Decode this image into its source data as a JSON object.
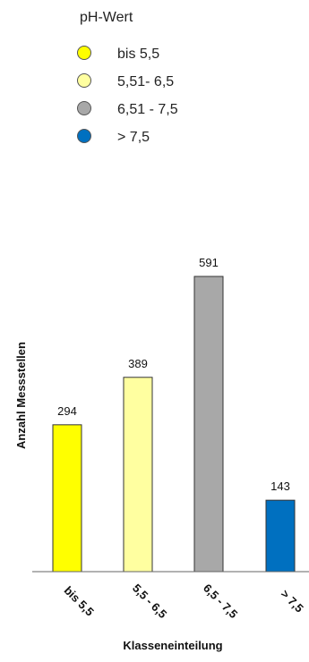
{
  "chart_data": {
    "type": "bar",
    "title": "",
    "xlabel": "Klasseneinteilung",
    "ylabel": "Anzahl Messstellen",
    "categories": [
      "bis 5,5",
      "5,5 - 6,5",
      "6,5 - 7,5",
      "> 7,5"
    ],
    "values": [
      294,
      389,
      591,
      143
    ],
    "colors": [
      "#FFFF00",
      "#FFFFA0",
      "#A8A8A8",
      "#0070C0"
    ],
    "ylim": [
      0,
      591
    ],
    "grid": false,
    "legend": {
      "title": "pH-Wert",
      "placement": "top-left",
      "entries": [
        {
          "label": "bis 5,5",
          "color": "#FFFF00"
        },
        {
          "label": "5,51- 6,5",
          "color": "#FFFFA0"
        },
        {
          "label": "6,51 - 7,5",
          "color": "#A8A8A8"
        },
        {
          "label": "> 7,5",
          "color": "#0070C0"
        }
      ]
    }
  }
}
